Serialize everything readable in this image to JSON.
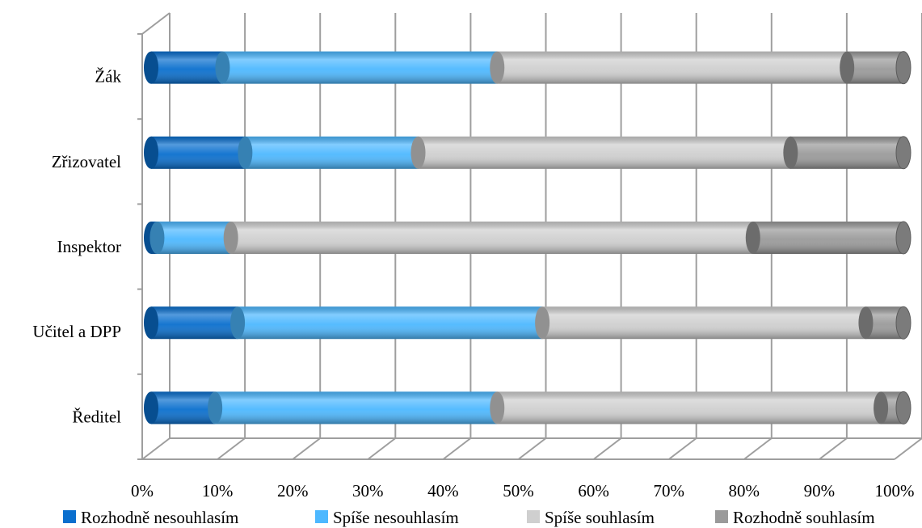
{
  "chart_data": {
    "type": "bar",
    "orientation": "horizontal",
    "stacked": "percent",
    "style": "3d-cylinder",
    "categories": [
      "Ředitel",
      "Učitel a DPP",
      "Inspektor",
      "Zřizovatel",
      "Žák"
    ],
    "series": [
      {
        "name": "Rozhodně nesouhlasím",
        "color": "#0a6fce",
        "values": [
          8.5,
          11.5,
          0.8,
          12.5,
          9.5
        ]
      },
      {
        "name": "Spíše nesouhlasím",
        "color": "#4db8ff",
        "values": [
          37.5,
          40.5,
          9.8,
          23.0,
          36.5
        ]
      },
      {
        "name": "Spíše souhlasím",
        "color": "#cfcfcf",
        "values": [
          51.0,
          43.0,
          69.4,
          49.5,
          46.5
        ]
      },
      {
        "name": "Rozhodně souhlasím",
        "color": "#9a9a9a",
        "values": [
          3.0,
          5.0,
          20.0,
          15.0,
          7.5
        ]
      }
    ],
    "x_ticks": [
      "0%",
      "10%",
      "20%",
      "30%",
      "40%",
      "50%",
      "60%",
      "70%",
      "80%",
      "90%",
      "100%"
    ],
    "xlim": [
      0,
      100
    ],
    "grid": true,
    "legend_position": "bottom",
    "title": "",
    "xlabel": "",
    "ylabel": ""
  }
}
